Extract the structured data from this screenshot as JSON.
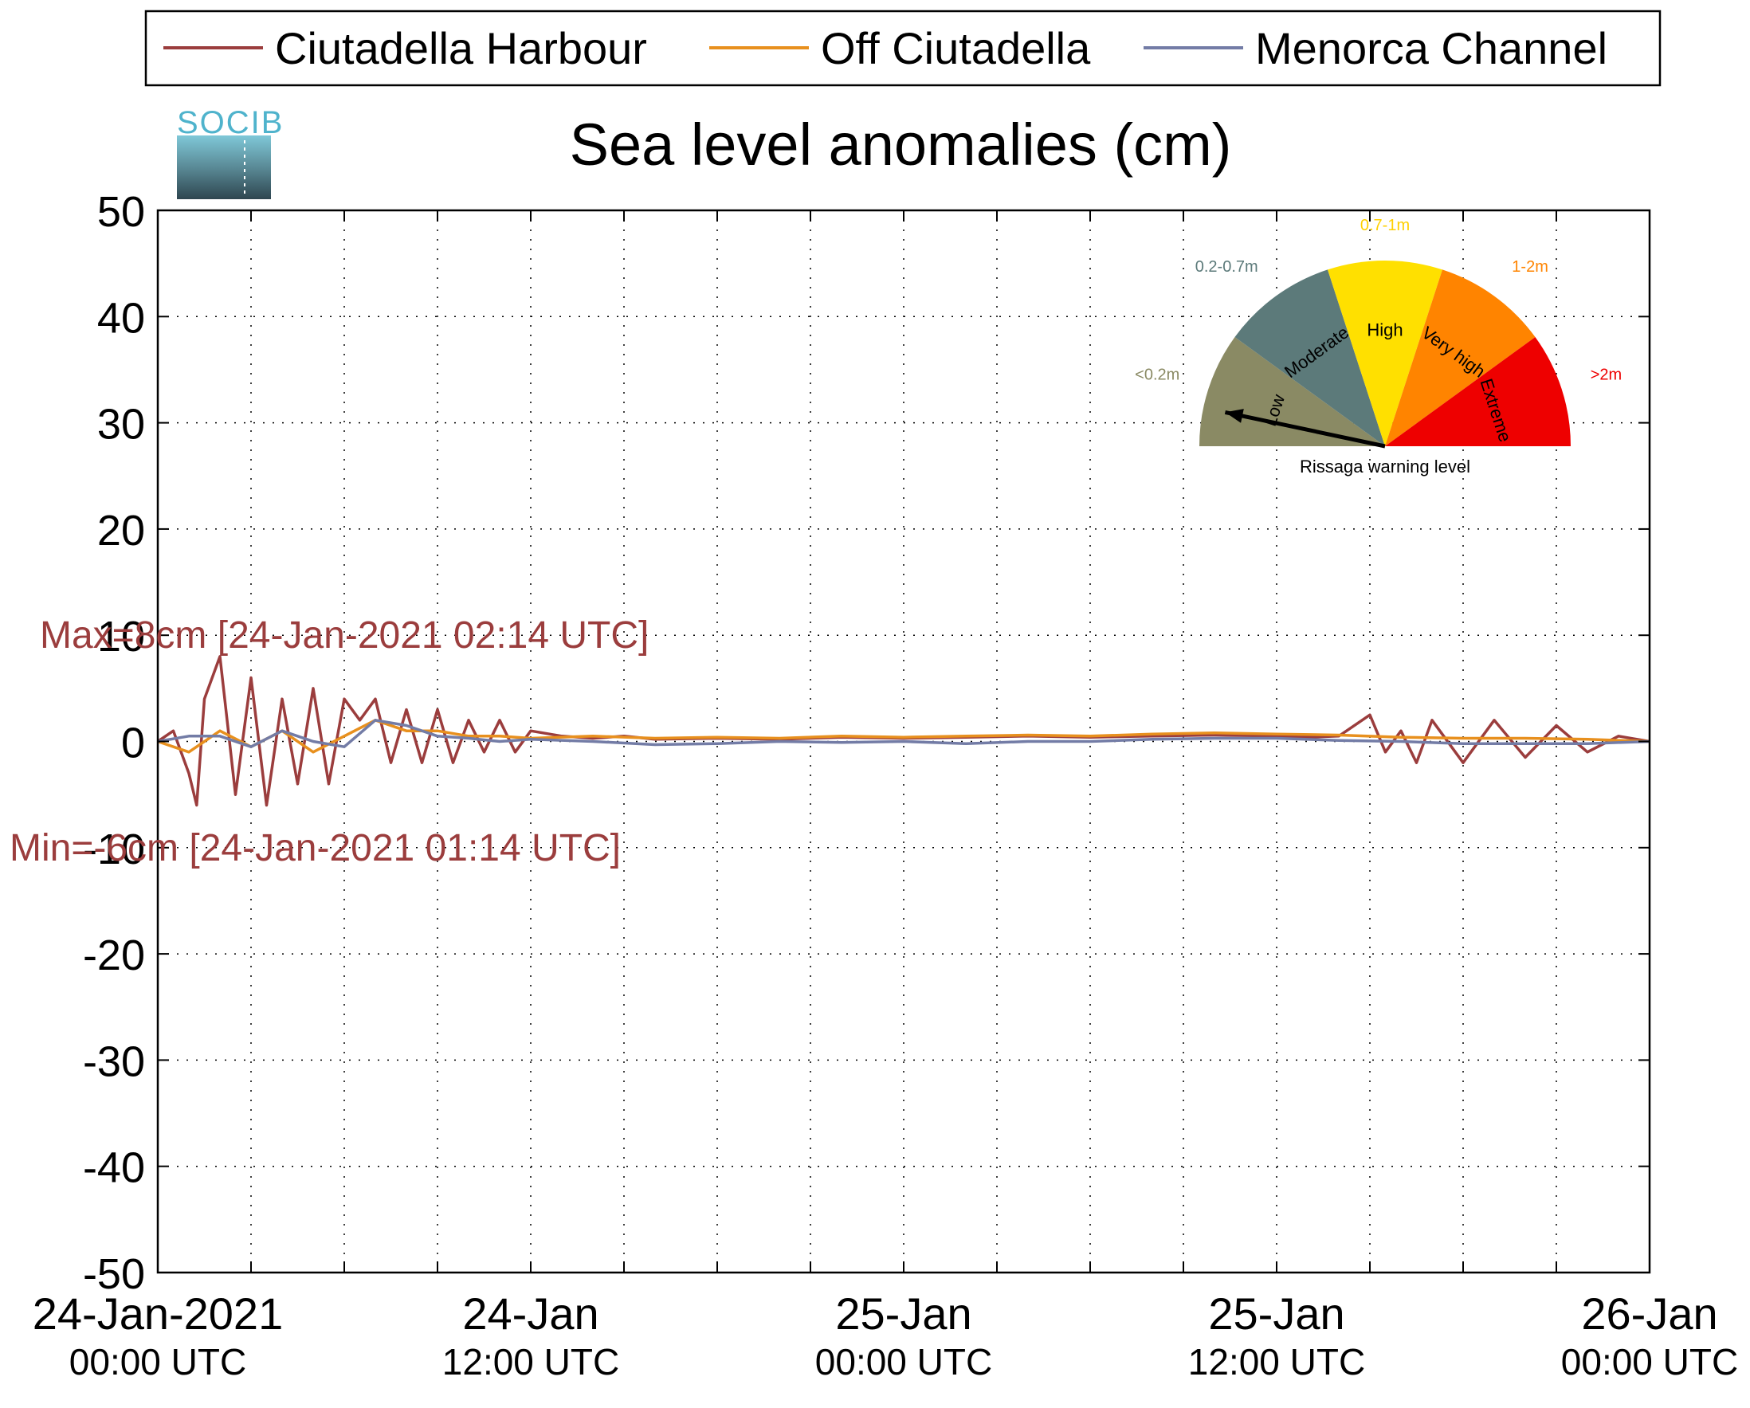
{
  "chart_data": {
    "type": "line",
    "title": "Sea level anomalies (cm)",
    "xlabel": "",
    "ylabel": "",
    "ylim": [
      -50,
      50
    ],
    "yticks": [
      50,
      40,
      30,
      20,
      10,
      0,
      -10,
      -20,
      -30,
      -40,
      -50
    ],
    "xlim_hours": [
      0,
      48
    ],
    "xtick_labels": [
      {
        "hour": 0,
        "line1": "24-Jan-2021",
        "line2": "00:00 UTC"
      },
      {
        "hour": 12,
        "line1": "24-Jan",
        "line2": "12:00 UTC"
      },
      {
        "hour": 24,
        "line1": "25-Jan",
        "line2": "00:00 UTC"
      },
      {
        "hour": 36,
        "line1": "25-Jan",
        "line2": "12:00 UTC"
      },
      {
        "hour": 48,
        "line1": "26-Jan",
        "line2": "00:00 UTC"
      }
    ],
    "grid": true,
    "legend_position": "top",
    "series": [
      {
        "name": "Ciutadella Harbour",
        "color": "#9b3d3d",
        "x": [
          0,
          0.5,
          1,
          1.25,
          1.5,
          2,
          2.5,
          3,
          3.5,
          4,
          4.5,
          5,
          5.5,
          6,
          6.5,
          7,
          7.5,
          8,
          8.5,
          9,
          9.5,
          10,
          10.5,
          11,
          11.5,
          12,
          13,
          14,
          15,
          16,
          18,
          20,
          22,
          24,
          26,
          28,
          30,
          32,
          34,
          36,
          37,
          38,
          39,
          39.5,
          40,
          40.5,
          41,
          42,
          43,
          44,
          45,
          46,
          47,
          48
        ],
        "y": [
          0,
          1,
          -3,
          -6,
          4,
          8,
          -5,
          6,
          -6,
          4,
          -4,
          5,
          -4,
          4,
          2,
          4,
          -2,
          3,
          -2,
          3,
          -2,
          2,
          -1,
          2,
          -1,
          1,
          0.5,
          0.3,
          0.5,
          0.2,
          0.3,
          0.2,
          0.4,
          0.3,
          0.4,
          0.5,
          0.4,
          0.5,
          0.6,
          0.5,
          0.4,
          0.5,
          2.5,
          -1,
          1,
          -2,
          2,
          -2,
          2,
          -1.5,
          1.5,
          -1,
          0.5,
          0
        ]
      },
      {
        "name": "Off Ciutadella",
        "color": "#e8901e",
        "x": [
          0,
          1,
          2,
          3,
          4,
          5,
          6,
          7,
          8,
          9,
          10,
          11,
          12,
          14,
          16,
          18,
          20,
          22,
          24,
          26,
          28,
          30,
          32,
          34,
          36,
          38,
          40,
          42,
          44,
          46,
          48
        ],
        "y": [
          0,
          -1,
          1,
          -0.5,
          1,
          -1,
          0.5,
          2,
          1,
          1,
          0.5,
          0.5,
          0.3,
          0.5,
          0.3,
          0.4,
          0.3,
          0.5,
          0.4,
          0.5,
          0.6,
          0.5,
          0.7,
          0.8,
          0.7,
          0.6,
          0.4,
          0.3,
          0.3,
          0.2,
          0
        ]
      },
      {
        "name": "Menorca Channel",
        "color": "#737ca6",
        "x": [
          0,
          1,
          2,
          3,
          4,
          5,
          6,
          7,
          8,
          9,
          10,
          11,
          12,
          14,
          16,
          18,
          20,
          22,
          24,
          26,
          28,
          30,
          32,
          34,
          36,
          38,
          40,
          42,
          44,
          46,
          48
        ],
        "y": [
          0,
          0.5,
          0.5,
          -0.5,
          1,
          0,
          -0.5,
          2,
          1.5,
          0.5,
          0.3,
          0,
          0.2,
          0,
          -0.3,
          -0.2,
          0,
          -0.1,
          0,
          -0.2,
          0,
          0,
          0.2,
          0.3,
          0.3,
          0.1,
          0,
          -0.2,
          -0.2,
          -0.2,
          0
        ]
      }
    ],
    "annotations": [
      {
        "text": "Max=8cm [24-Jan-2021 02:14 UTC]",
        "color": "#9b3d3d",
        "y": 10
      },
      {
        "text": "Min=-6cm [24-Jan-2021 01:14 UTC]",
        "color": "#9b3d3d",
        "y": -10
      }
    ]
  },
  "logo": {
    "text": "SOCIB"
  },
  "gauge": {
    "caption": "Rissaga warning level",
    "needle_level": "Low",
    "segments": [
      {
        "name": "Low",
        "range": "<0.2m",
        "color": "#8a8a64",
        "range_color": "#8a8a64"
      },
      {
        "name": "Moderate",
        "range": "0.2-0.7m",
        "color": "#5c7a7a",
        "range_color": "#5c7a7a"
      },
      {
        "name": "High",
        "range": "0.7-1m",
        "color": "#ffe000",
        "range_color": "#ffd000"
      },
      {
        "name": "Very high",
        "range": "1-2m",
        "color": "#ff8400",
        "range_color": "#ff8400"
      },
      {
        "name": "Extreme",
        "range": ">2m",
        "color": "#ee0000",
        "range_color": "#ee0000"
      }
    ]
  }
}
